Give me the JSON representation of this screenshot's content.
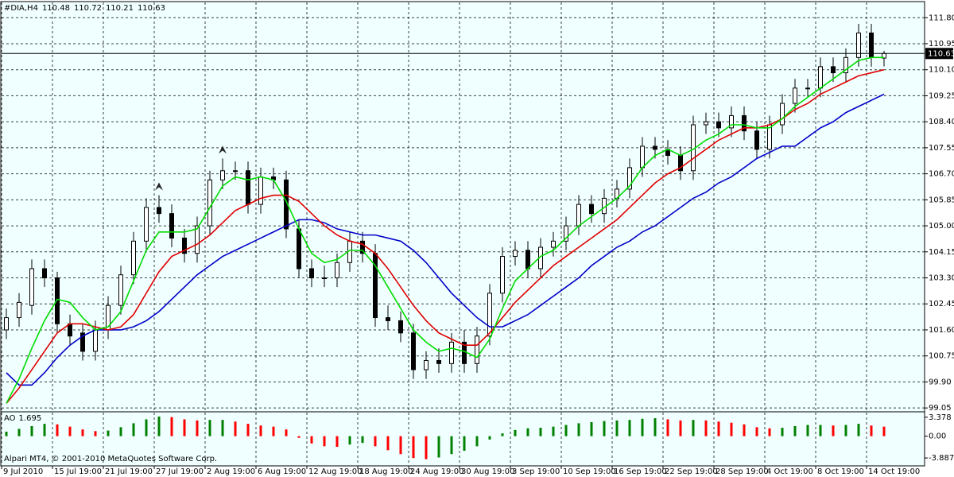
{
  "chart_data": [
    {
      "type": "candlestick",
      "title": "#DIA,H4",
      "categories": [
        "9 Jul 2010",
        null,
        null,
        null,
        "15 Jul 19:00",
        null,
        null,
        null,
        "21 Jul 19:00",
        null,
        null,
        null,
        "27 Jul 19:00",
        null,
        null,
        null,
        "2 Aug 19:00",
        null,
        null,
        null,
        "6 Aug 19:00",
        null,
        null,
        null,
        "12 Aug 19:00",
        null,
        null,
        null,
        "18 Aug 19:00",
        null,
        null,
        null,
        "24 Aug 19:00",
        null,
        null,
        null,
        "30 Aug 19:00",
        null,
        null,
        null,
        "3 Sep 19:00",
        null,
        null,
        null,
        "10 Sep 19:00",
        null,
        null,
        null,
        "16 Sep 19:00",
        null,
        null,
        null,
        "22 Sep 19:00",
        null,
        null,
        null,
        "28 Sep 19:00",
        null,
        null,
        null,
        "4 Oct 19:00",
        null,
        null,
        null,
        "8 Oct 19:00",
        null,
        null,
        null,
        "14 Oct 19:00",
        null
      ],
      "open": [
        101.6,
        102.0,
        102.4,
        103.6,
        103.3,
        101.8,
        101.5,
        100.9,
        101.6,
        102.4,
        103.4,
        104.5,
        105.6,
        105.4,
        104.6,
        104.1,
        105.0,
        106.5,
        106.8,
        106.8,
        105.7,
        106.6,
        106.5,
        104.9,
        103.6,
        103.3,
        103.3,
        103.8,
        104.5,
        104.1,
        102.0,
        101.9,
        101.5,
        100.3,
        100.6,
        100.5,
        101.2,
        100.5,
        101.4,
        102.8,
        104.0,
        104.2,
        103.6,
        104.3,
        104.5,
        105.0,
        105.7,
        105.4,
        105.9,
        106.2,
        106.9,
        107.6,
        107.5,
        107.3,
        106.8,
        108.3,
        108.4,
        108.2,
        108.6,
        108.1,
        107.5,
        108.3,
        109.0,
        109.5,
        109.5,
        110.2,
        110.0,
        110.5,
        111.3,
        110.48
      ],
      "high": [
        102.3,
        102.8,
        103.9,
        103.9,
        103.5,
        102.1,
        101.8,
        101.9,
        102.7,
        103.7,
        104.8,
        105.9,
        106.0,
        105.7,
        104.9,
        105.3,
        106.8,
        107.2,
        107.1,
        107.1,
        106.9,
        106.9,
        106.8,
        105.2,
        103.9,
        103.7,
        104.1,
        104.8,
        104.8,
        104.4,
        102.4,
        102.2,
        101.8,
        100.9,
        101.0,
        101.5,
        101.6,
        101.7,
        103.1,
        104.3,
        104.5,
        104.5,
        104.6,
        104.8,
        105.3,
        106.0,
        106.0,
        106.2,
        106.5,
        107.2,
        107.9,
        107.9,
        107.8,
        107.6,
        108.6,
        108.7,
        108.7,
        108.9,
        108.9,
        108.4,
        108.6,
        109.3,
        109.8,
        109.8,
        110.5,
        110.5,
        110.8,
        111.6,
        111.6,
        110.72
      ],
      "low": [
        101.3,
        101.7,
        102.1,
        103.0,
        101.5,
        101.1,
        100.6,
        100.6,
        101.3,
        102.1,
        103.1,
        104.2,
        105.1,
        104.3,
        103.8,
        103.8,
        104.7,
        106.2,
        106.5,
        105.4,
        105.4,
        106.2,
        104.6,
        103.3,
        103.0,
        103.0,
        103.0,
        103.5,
        103.8,
        101.7,
        101.6,
        101.2,
        100.0,
        100.0,
        100.2,
        100.2,
        100.2,
        100.2,
        101.1,
        102.5,
        103.7,
        103.3,
        103.3,
        104.0,
        104.2,
        104.7,
        105.1,
        105.1,
        105.6,
        105.9,
        106.6,
        107.2,
        107.0,
        106.5,
        106.5,
        108.0,
        107.9,
        107.9,
        107.8,
        107.2,
        107.2,
        108.0,
        108.7,
        109.2,
        109.2,
        109.7,
        109.7,
        110.2,
        110.2,
        110.21
      ],
      "close": [
        102.0,
        102.5,
        103.6,
        103.3,
        101.8,
        101.4,
        100.9,
        101.6,
        102.4,
        103.4,
        104.5,
        105.6,
        105.4,
        104.6,
        104.1,
        105.0,
        106.5,
        106.8,
        106.8,
        105.7,
        106.6,
        106.5,
        104.9,
        103.6,
        103.3,
        103.3,
        103.8,
        104.5,
        104.1,
        102.0,
        101.9,
        101.5,
        100.3,
        100.6,
        100.5,
        101.2,
        100.5,
        101.4,
        102.8,
        104.0,
        104.2,
        103.6,
        104.3,
        104.5,
        105.0,
        105.7,
        105.4,
        105.9,
        106.2,
        106.9,
        107.6,
        107.5,
        107.3,
        106.8,
        108.3,
        108.4,
        108.2,
        108.6,
        108.1,
        107.5,
        108.3,
        109.0,
        109.5,
        109.5,
        110.2,
        110.0,
        110.5,
        111.3,
        110.5,
        110.63
      ],
      "up_color": "#ffffff",
      "down_color": "#000000",
      "series": [
        {
          "color": "#0000c8",
          "values": [
            100.2,
            99.8,
            99.8,
            100.2,
            100.7,
            101.1,
            101.4,
            101.6,
            101.6,
            101.6,
            101.7,
            101.9,
            102.2,
            102.6,
            103.0,
            103.4,
            103.7,
            104.0,
            104.2,
            104.4,
            104.6,
            104.8,
            105.0,
            105.2,
            105.2,
            105.1,
            104.9,
            104.8,
            104.7,
            104.7,
            104.6,
            104.5,
            104.2,
            103.8,
            103.3,
            102.8,
            102.4,
            102.0,
            101.7,
            101.7,
            101.9,
            102.1,
            102.4,
            102.7,
            103.0,
            103.3,
            103.7,
            104.0,
            104.3,
            104.5,
            104.8,
            105.0,
            105.3,
            105.6,
            105.9,
            106.1,
            106.4,
            106.6,
            106.9,
            107.2,
            107.4,
            107.6,
            107.6,
            107.9,
            108.2,
            108.4,
            108.7,
            108.9,
            109.1,
            109.3
          ]
        },
        {
          "color": "#e00000",
          "values": [
            99.2,
            99.7,
            100.3,
            100.9,
            101.5,
            101.8,
            101.8,
            101.7,
            101.6,
            101.7,
            102.1,
            102.8,
            103.5,
            104.0,
            104.2,
            104.4,
            104.7,
            105.1,
            105.5,
            105.7,
            105.9,
            106.0,
            106.0,
            105.8,
            105.4,
            105.0,
            104.7,
            104.5,
            104.4,
            104.1,
            103.6,
            103.0,
            102.4,
            101.9,
            101.5,
            101.3,
            101.1,
            101.1,
            101.5,
            102.0,
            102.5,
            102.9,
            103.3,
            103.7,
            104.0,
            104.3,
            104.6,
            104.9,
            105.2,
            105.6,
            106.0,
            106.4,
            106.7,
            106.9,
            107.2,
            107.5,
            107.8,
            108.0,
            108.2,
            108.2,
            108.3,
            108.5,
            108.8,
            109.0,
            109.3,
            109.5,
            109.7,
            109.9,
            110.0,
            110.1
          ]
        },
        {
          "color": "#00dd00",
          "values": [
            99.2,
            100.0,
            101.0,
            101.9,
            102.6,
            102.5,
            102.0,
            101.6,
            101.7,
            102.2,
            103.2,
            104.2,
            104.8,
            104.8,
            104.8,
            104.9,
            105.6,
            106.3,
            106.6,
            106.5,
            106.6,
            106.5,
            105.8,
            104.9,
            104.1,
            103.8,
            103.9,
            104.2,
            104.2,
            103.7,
            103.0,
            102.3,
            101.6,
            101.2,
            100.9,
            101.0,
            100.9,
            100.7,
            101.3,
            102.3,
            103.2,
            103.6,
            104.0,
            104.2,
            104.6,
            105.0,
            105.3,
            105.6,
            105.9,
            106.3,
            106.9,
            107.3,
            107.5,
            107.3,
            107.5,
            107.8,
            108.0,
            108.3,
            108.3,
            108.2,
            108.2,
            108.5,
            108.9,
            109.2,
            109.5,
            109.8,
            110.1,
            110.4,
            110.5,
            110.5
          ]
        }
      ],
      "ylim": [
        98.95,
        112.3
      ],
      "yticks": [
        99.05,
        {
          "value": 99.9,
          "label": "99.90"
        },
        100.75,
        {
          "value": 101.6,
          "label": "101.60"
        },
        102.45,
        {
          "value": 103.3,
          "label": "103.30"
        },
        104.15,
        {
          "value": 105,
          "label": "105.00"
        },
        105.85,
        {
          "value": 106.7,
          "label": "106.70"
        },
        107.55,
        {
          "value": 108.4,
          "label": "108.40"
        },
        109.25,
        {
          "value": 110.1,
          "label": "110.10"
        },
        110.95,
        {
          "value": 111.8,
          "label": "111.80"
        }
      ],
      "grid": true
    },
    {
      "type": "histogram",
      "title": "AO",
      "values": [
        0.8,
        1.3,
        1.8,
        2.2,
        2.1,
        1.7,
        1.2,
        0.9,
        1.0,
        1.6,
        2.3,
        3.0,
        3.5,
        3.4,
        3.0,
        2.8,
        2.9,
        2.9,
        2.6,
        2.2,
        1.9,
        1.7,
        1.2,
        -0.3,
        -1.3,
        -1.8,
        -1.9,
        -1.5,
        -1.2,
        -1.8,
        -2.5,
        -3.2,
        -3.9,
        -4.1,
        -3.8,
        -3.2,
        -2.6,
        -1.8,
        -0.6,
        0.5,
        1.1,
        1.4,
        1.5,
        1.7,
        2.0,
        2.3,
        2.5,
        2.7,
        2.8,
        2.9,
        3.1,
        3.2,
        3.0,
        2.8,
        2.9,
        2.8,
        2.6,
        2.4,
        2.1,
        1.6,
        1.4,
        1.5,
        1.8,
        2.0,
        2.0,
        1.9,
        2.0,
        2.2,
        1.9,
        1.695
      ],
      "up_color": "#008000",
      "down_color": "#ff0000",
      "ylim": [
        -5.15,
        4.2
      ],
      "yticks": [
        3.378,
        {
          "value": 0,
          "label": "0.00"
        },
        -3.887
      ],
      "annotation": "Alpari MT4, © 2001-2010 MetaQuotes Software Corp."
    }
  ]
}
